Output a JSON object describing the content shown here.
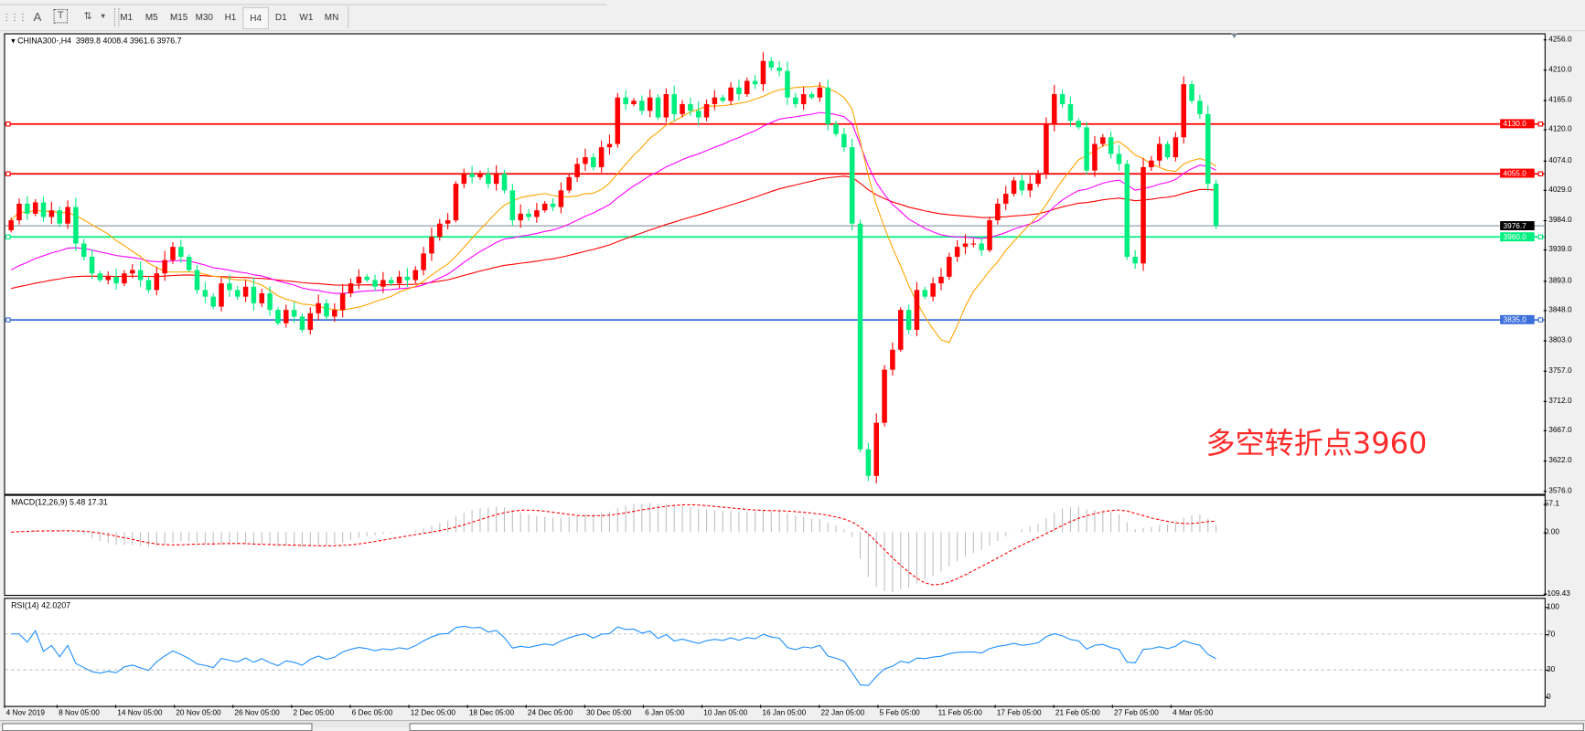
{
  "toolbar": {
    "icons": [
      "grid-lines-icon",
      "text-icon",
      "text-label-icon",
      "arrows-icon"
    ],
    "timeframes": [
      "M1",
      "M5",
      "M15",
      "M30",
      "H1",
      "H4",
      "D1",
      "W1",
      "MN"
    ],
    "selected_timeframe": "H4"
  },
  "chart": {
    "header": "CHINA300-,H4  3989.8 4008.4 3961.6 3976.7",
    "annotation": "多空转折点3960",
    "price_ticks": [
      "4256.0",
      "4210.0",
      "4165.0",
      "4120.0",
      "4074.0",
      "4029.0",
      "3984.0",
      "3939.0",
      "3893.0",
      "3848.0",
      "3803.0",
      "3757.0",
      "3712.0",
      "3667.0",
      "3622.0",
      "3576.0"
    ],
    "levels": [
      {
        "label": "4130.0",
        "value": 4130,
        "color": "#ff0000"
      },
      {
        "label": "4055.0",
        "value": 4055,
        "color": "#ff0000"
      },
      {
        "label": "3960.0",
        "value": 3960,
        "color": "#00f080"
      },
      {
        "label": "3835.0",
        "value": 3835,
        "color": "#3a6fdc"
      }
    ],
    "current_price": {
      "label": "3976.7",
      "value": 3976.7,
      "color": "#000000"
    },
    "macd": {
      "label": "MACD(12,26,9) 5.48 17.31",
      "ticks": [
        "57.1",
        "0.00",
        "-109.43"
      ],
      "max": 57.1,
      "min": -109.43
    },
    "rsi": {
      "label": "RSI(14) 42.0207",
      "ticks": [
        "100",
        "70",
        "30",
        "0"
      ]
    },
    "dates": [
      "4 Nov 2019",
      "8 Nov 05:00",
      "14 Nov 05:00",
      "20 Nov 05:00",
      "26 Nov 05:00",
      "2 Dec 05:00",
      "6 Dec 05:00",
      "12 Dec 05:00",
      "18 Dec 05:00",
      "24 Dec 05:00",
      "30 Dec 05:00",
      "6 Jan 05:00",
      "10 Jan 05:00",
      "16 Jan 05:00",
      "22 Jan 05:00",
      "5 Feb 05:00",
      "11 Feb 05:00",
      "17 Feb 05:00",
      "21 Feb 05:00",
      "27 Feb 05:00",
      "4 Mar 05:00"
    ],
    "colors": {
      "bull": "#ff0000",
      "bear": "#00ee7e",
      "ma_fast": "#ffa500",
      "ma_mid": "#ff00ff",
      "ma_slow": "#ff0000",
      "rsi": "#1e90ff",
      "macd_hist": "#c0c0c0",
      "macd_signal": "#ff0000"
    }
  },
  "chart_data": {
    "type": "candlestick",
    "symbol": "CHINA300-",
    "timeframe": "H4",
    "ylim": [
      3576,
      4256
    ],
    "close": [
      3985,
      4010,
      3995,
      4012,
      3990,
      4000,
      3980,
      4005,
      3950,
      3930,
      3905,
      3895,
      3900,
      3890,
      3905,
      3910,
      3895,
      3880,
      3905,
      3925,
      3945,
      3930,
      3910,
      3880,
      3870,
      3855,
      3890,
      3880,
      3870,
      3885,
      3860,
      3875,
      3850,
      3830,
      3850,
      3840,
      3820,
      3845,
      3860,
      3840,
      3850,
      3875,
      3890,
      3900,
      3895,
      3885,
      3895,
      3890,
      3900,
      3895,
      3910,
      3935,
      3960,
      3980,
      3985,
      4040,
      4055,
      4050,
      4055,
      4040,
      4055,
      4030,
      3985,
      3995,
      3990,
      4000,
      4010,
      4005,
      4030,
      4050,
      4070,
      4080,
      4065,
      4095,
      4100,
      4170,
      4160,
      4165,
      4150,
      4170,
      4140,
      4175,
      4145,
      4160,
      4150,
      4140,
      4160,
      4170,
      4165,
      4185,
      4175,
      4195,
      4190,
      4225,
      4215,
      4210,
      4170,
      4160,
      4175,
      4170,
      4185,
      4130,
      4115,
      4095,
      3980,
      3640,
      3600,
      3680,
      3760,
      3790,
      3850,
      3820,
      3880,
      3870,
      3890,
      3900,
      3930,
      3945,
      3950,
      3950,
      3940,
      3985,
      4010,
      4025,
      4045,
      4030,
      4040,
      4055,
      4130,
      4175,
      4160,
      4135,
      4125,
      4060,
      4100,
      4110,
      4085,
      4070,
      3930,
      3920,
      4065,
      4075,
      4100,
      4080,
      4110,
      4190,
      4165,
      4145,
      4040,
      3976.7
    ]
  }
}
